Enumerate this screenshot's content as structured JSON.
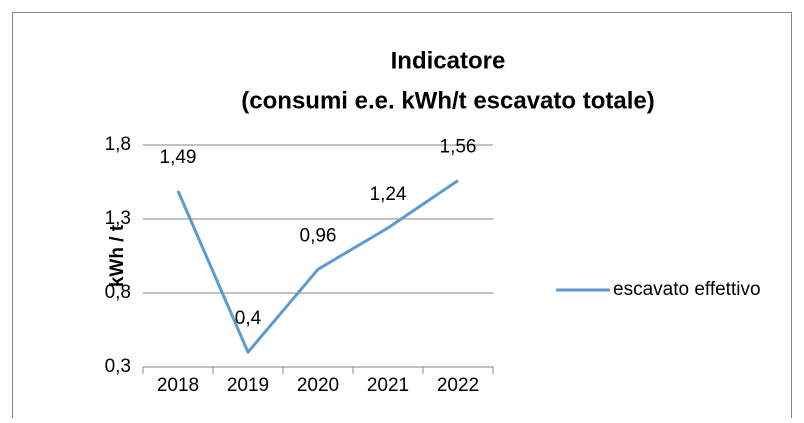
{
  "chart_data": {
    "type": "line",
    "title": [
      "Indicatore",
      "(consumi e.e. kWh/t escavato totale)"
    ],
    "y_label": "kWh / t",
    "categories": [
      "2018",
      "2019",
      "2020",
      "2021",
      "2022"
    ],
    "series": [
      {
        "name": "escavato effettivo",
        "color": "#5b9bd5",
        "values": [
          1.49,
          0.4,
          0.96,
          1.24,
          1.56
        ],
        "value_labels": [
          "1,49",
          "0,4",
          "0,96",
          "1,24",
          "1,56"
        ]
      }
    ],
    "ylim": [
      0.3,
      1.8
    ],
    "yticks": [
      {
        "value": 0.3,
        "label": "0,3"
      },
      {
        "value": 0.8,
        "label": "0,8"
      },
      {
        "value": 1.3,
        "label": "1,3"
      },
      {
        "value": 1.8,
        "label": "1,8"
      }
    ],
    "grid": true,
    "legend": "right"
  }
}
